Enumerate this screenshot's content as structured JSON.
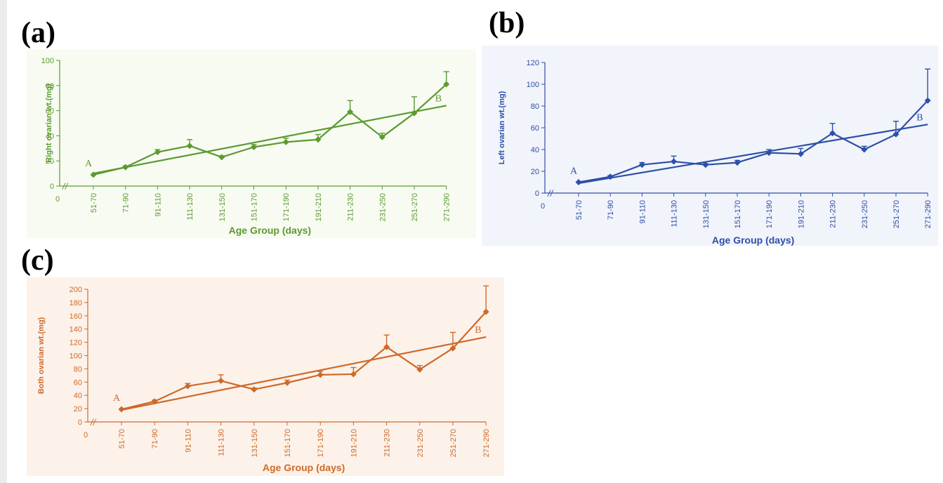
{
  "panels": [
    {
      "label": "(a)"
    },
    {
      "label": "(b)"
    },
    {
      "label": "(c)"
    }
  ],
  "colors": {
    "a": "#5b9a31",
    "b": "#2e4fa8",
    "c": "#cd6a2a",
    "a_bg": "#f8fbf2",
    "b_bg": "#f1f4fa",
    "c_bg": "#fcf2ea"
  },
  "chart_data": [
    {
      "type": "line",
      "panel": "(a)",
      "categories": [
        "51-70",
        "71-90",
        "91-110",
        "111-130",
        "131-150",
        "151-170",
        "171-190",
        "191-210",
        "211-230",
        "231-250",
        "251-270",
        "271-290"
      ],
      "series": [
        {
          "values": [
            9,
            15,
            27,
            32,
            23,
            31,
            35,
            37,
            59,
            39,
            58,
            81
          ],
          "error_upper": [
            0,
            1,
            2,
            5,
            1,
            2,
            3,
            4,
            9,
            3,
            13,
            10
          ]
        }
      ],
      "trend": {
        "start": 10,
        "end": 64
      },
      "annotations": [
        "A",
        "B"
      ],
      "ylabel": "Right ovarian wt.(mg)",
      "xlabel": "Age Group (days)",
      "ylim": [
        0,
        100
      ],
      "yticks": [
        0,
        20,
        40,
        60,
        80,
        100
      ],
      "x_origin_label": "0",
      "axis_break": "//"
    },
    {
      "type": "line",
      "panel": "(b)",
      "categories": [
        "51-70",
        "71-90",
        "91-110",
        "111-130",
        "131-150",
        "151-170",
        "171-190",
        "191-210",
        "211-230",
        "231-250",
        "251-270",
        "271-290"
      ],
      "series": [
        {
          "values": [
            10,
            15,
            26,
            29,
            26,
            28,
            37,
            36,
            55,
            40,
            54,
            85
          ],
          "error_upper": [
            0,
            1,
            2,
            5,
            1,
            2,
            3,
            5,
            9,
            3,
            12,
            29
          ]
        }
      ],
      "trend": {
        "start": 9,
        "end": 63
      },
      "annotations": [
        "A",
        "B"
      ],
      "ylabel": "Left ovarian wt.(mg)",
      "xlabel": "Age Group (days)",
      "ylim": [
        0,
        120
      ],
      "yticks": [
        0,
        20,
        40,
        60,
        80,
        100,
        120
      ],
      "x_origin_label": "0",
      "axis_break": "//"
    },
    {
      "type": "line",
      "panel": "(c)",
      "categories": [
        "51-70",
        "71-90",
        "91-110",
        "111-130",
        "131-150",
        "151-170",
        "171-190",
        "191-210",
        "211-230",
        "231-250",
        "251-270",
        "271-290"
      ],
      "series": [
        {
          "values": [
            19,
            31,
            54,
            62,
            49,
            59,
            71,
            72,
            113,
            79,
            111,
            166
          ],
          "error_upper": [
            0,
            2,
            4,
            9,
            2,
            4,
            5,
            10,
            18,
            6,
            24,
            39
          ]
        }
      ],
      "trend": {
        "start": 18,
        "end": 128
      },
      "annotations": [
        "A",
        "B"
      ],
      "ylabel": "Both ovarian wt.(mg)",
      "xlabel": "Age Group (days)",
      "ylim": [
        0,
        200
      ],
      "yticks": [
        0,
        20,
        40,
        60,
        80,
        100,
        120,
        140,
        160,
        180,
        200
      ],
      "x_origin_label": "0",
      "axis_break": "//"
    }
  ]
}
